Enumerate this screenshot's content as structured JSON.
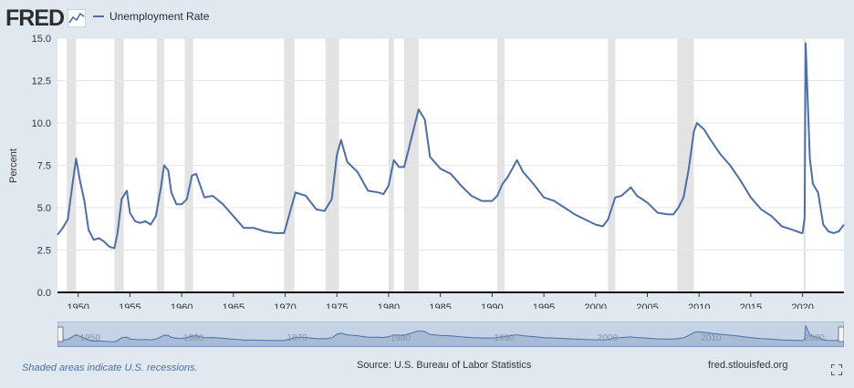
{
  "header": {
    "logo_text": "FRED",
    "legend_label": "Unemployment Rate"
  },
  "colors": {
    "series": "#4d6fa4",
    "recession": "#e3e3e3",
    "background": "#e1e9f0",
    "navigator_fill": "#c4d3e6"
  },
  "chart_data": {
    "type": "line",
    "title": "",
    "xlabel": "",
    "ylabel": "Percent",
    "xlim": [
      1948,
      2024
    ],
    "ylim": [
      0,
      15
    ],
    "y_ticks": [
      "0.0",
      "2.5",
      "5.0",
      "7.5",
      "10.0",
      "12.5",
      "15.0"
    ],
    "x_ticks": [
      "1950",
      "1955",
      "1960",
      "1965",
      "1970",
      "1975",
      "1980",
      "1985",
      "1990",
      "1995",
      "2000",
      "2005",
      "2010",
      "2015",
      "2020"
    ],
    "grid": "horizontal",
    "recessions": [
      [
        1948.9,
        1949.8
      ],
      [
        1953.5,
        1954.4
      ],
      [
        1957.6,
        1958.3
      ],
      [
        1960.3,
        1961.1
      ],
      [
        1969.9,
        1970.9
      ],
      [
        1973.9,
        1975.2
      ],
      [
        1980.0,
        1980.5
      ],
      [
        1981.5,
        1982.9
      ],
      [
        1990.5,
        1991.2
      ],
      [
        2001.2,
        2001.9
      ],
      [
        2007.9,
        2009.5
      ],
      [
        2020.1,
        2020.3
      ]
    ],
    "series": [
      {
        "name": "Unemployment Rate",
        "x": [
          1948.0,
          1948.5,
          1949.0,
          1949.5,
          1949.8,
          1950.2,
          1950.6,
          1951.0,
          1951.5,
          1952.0,
          1952.5,
          1953.0,
          1953.5,
          1953.8,
          1954.2,
          1954.7,
          1955.0,
          1955.5,
          1956.0,
          1956.5,
          1957.0,
          1957.5,
          1958.0,
          1958.3,
          1958.7,
          1959.0,
          1959.5,
          1960.0,
          1960.5,
          1961.0,
          1961.4,
          1961.8,
          1962.2,
          1963.0,
          1964.0,
          1965.0,
          1966.0,
          1967.0,
          1968.0,
          1969.0,
          1969.9,
          1970.5,
          1971.0,
          1972.0,
          1973.0,
          1973.8,
          1974.5,
          1975.0,
          1975.4,
          1976.0,
          1977.0,
          1978.0,
          1979.0,
          1979.5,
          1980.0,
          1980.5,
          1981.0,
          1981.5,
          1982.0,
          1982.9,
          1983.5,
          1984.0,
          1985.0,
          1986.0,
          1987.0,
          1988.0,
          1989.0,
          1990.0,
          1990.5,
          1991.0,
          1991.5,
          1992.4,
          1993.0,
          1994.0,
          1995.0,
          1996.0,
          1997.0,
          1998.0,
          1999.0,
          2000.0,
          2000.7,
          2001.2,
          2001.9,
          2002.5,
          2003.4,
          2004.0,
          2005.0,
          2006.0,
          2007.0,
          2007.5,
          2008.0,
          2008.5,
          2009.0,
          2009.5,
          2009.8,
          2010.5,
          2011.0,
          2012.0,
          2013.0,
          2014.0,
          2015.0,
          2016.0,
          2017.0,
          2018.0,
          2019.0,
          2019.9,
          2020.0,
          2020.2,
          2020.3,
          2020.7,
          2021.0,
          2021.5,
          2022.0,
          2022.5,
          2023.0,
          2023.5,
          2024.0
        ],
        "values": [
          3.4,
          3.8,
          4.3,
          6.6,
          7.9,
          6.5,
          5.4,
          3.7,
          3.1,
          3.2,
          3.0,
          2.7,
          2.6,
          3.5,
          5.5,
          6.0,
          4.7,
          4.2,
          4.1,
          4.2,
          4.0,
          4.5,
          6.2,
          7.5,
          7.2,
          5.9,
          5.2,
          5.2,
          5.5,
          6.9,
          7.0,
          6.3,
          5.6,
          5.7,
          5.2,
          4.5,
          3.8,
          3.8,
          3.6,
          3.5,
          3.5,
          4.8,
          5.9,
          5.7,
          4.9,
          4.8,
          5.5,
          8.1,
          9.0,
          7.7,
          7.1,
          6.0,
          5.9,
          5.8,
          6.3,
          7.8,
          7.4,
          7.4,
          8.6,
          10.8,
          10.2,
          8.0,
          7.3,
          7.0,
          6.3,
          5.7,
          5.4,
          5.4,
          5.7,
          6.4,
          6.8,
          7.8,
          7.1,
          6.4,
          5.6,
          5.4,
          5.0,
          4.6,
          4.3,
          4.0,
          3.9,
          4.3,
          5.6,
          5.7,
          6.2,
          5.7,
          5.3,
          4.7,
          4.6,
          4.6,
          5.0,
          5.6,
          7.3,
          9.5,
          10.0,
          9.6,
          9.1,
          8.2,
          7.5,
          6.6,
          5.6,
          4.9,
          4.5,
          3.9,
          3.7,
          3.5,
          3.5,
          4.4,
          14.7,
          7.9,
          6.4,
          5.9,
          4.0,
          3.6,
          3.5,
          3.6,
          4.0
        ]
      }
    ],
    "navigator_ticks": [
      "1950",
      "1960",
      "1970",
      "1980",
      "1990",
      "2000",
      "2010",
      "2020"
    ]
  },
  "footer": {
    "recession_note": "Shaded areas indicate U.S. recessions.",
    "source": "Source: U.S. Bureau of Labor Statistics",
    "site": "fred.stlouisfed.org"
  }
}
